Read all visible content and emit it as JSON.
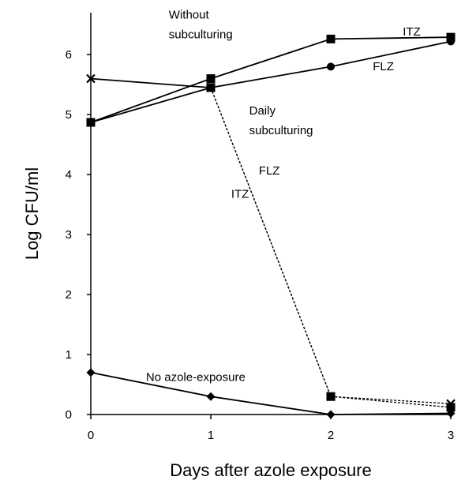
{
  "chart_data": {
    "type": "line",
    "xlabel": "Days after azole exposure",
    "ylabel": "Log CFU/ml",
    "xlim": [
      0,
      3
    ],
    "ylim": [
      0,
      6.7
    ],
    "x_ticks": [
      "0",
      "1",
      "2",
      "3"
    ],
    "y_ticks": [
      "0",
      "1",
      "2",
      "3",
      "4",
      "5",
      "6"
    ],
    "grid": false,
    "legend": "none",
    "series": [
      {
        "style": "solid",
        "marker": "square",
        "x": [
          0,
          1,
          2,
          3
        ],
        "y": [
          4.87,
          5.6,
          6.26,
          6.29
        ]
      },
      {
        "style": "solid",
        "marker": "circle",
        "x": [
          0,
          1,
          2,
          3
        ],
        "y": [
          4.87,
          5.45,
          5.8,
          6.22
        ]
      },
      {
        "style": "solid",
        "marker": "star",
        "x": [
          0,
          1
        ],
        "y": [
          5.6,
          5.45
        ]
      },
      {
        "style": "dashed",
        "marker": "square",
        "x": [
          1,
          2,
          3
        ],
        "y": [
          5.45,
          0.3,
          0.12
        ]
      },
      {
        "style": "dashed",
        "marker": "star",
        "x": [
          1,
          2,
          3
        ],
        "y": [
          5.45,
          0.3,
          0.18
        ]
      },
      {
        "style": "solid",
        "marker": "diamond",
        "x": [
          0,
          1,
          2,
          3
        ],
        "y": [
          0.7,
          0.3,
          0.0,
          0.02
        ]
      }
    ],
    "annotations": [
      {
        "text": "Without",
        "x": 0.65,
        "y": 6.6
      },
      {
        "text": "subculturing",
        "x": 0.65,
        "y": 6.27
      },
      {
        "text": "ITZ",
        "x": 2.6,
        "y": 6.32
      },
      {
        "text": "FLZ",
        "x": 2.35,
        "y": 5.74
      },
      {
        "text": "Daily",
        "x": 1.32,
        "y": 5.0
      },
      {
        "text": "subculturing",
        "x": 1.32,
        "y": 4.67
      },
      {
        "text": "FLZ",
        "x": 1.4,
        "y": 4.0
      },
      {
        "text": "ITZ",
        "x": 1.17,
        "y": 3.61
      },
      {
        "text": "No azole-exposure",
        "x": 0.46,
        "y": 0.56
      }
    ]
  }
}
